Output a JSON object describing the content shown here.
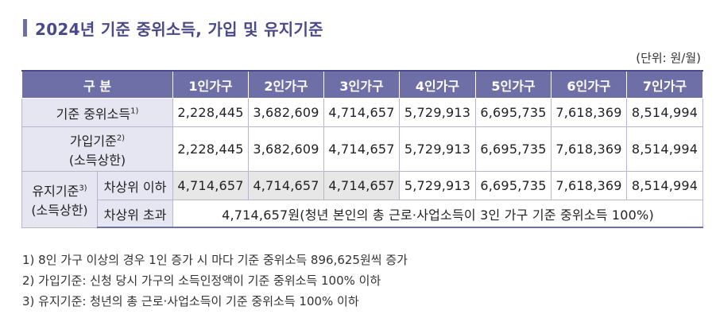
{
  "title": "2024년 기준 중위소득, 가입 및 유지기준",
  "unit": "(단위: 원/월)",
  "table": {
    "header": {
      "category": "구 분",
      "cols": [
        "1인가구",
        "2인가구",
        "3인가구",
        "4인가구",
        "5인가구",
        "6인가구",
        "7인가구"
      ]
    },
    "rows": {
      "median": {
        "label": "기준 중위소득",
        "sup": "1)",
        "values": [
          "2,228,445",
          "3,682,609",
          "4,714,657",
          "5,729,913",
          "6,695,735",
          "7,618,369",
          "8,514,994"
        ]
      },
      "join": {
        "label_line1": "가입기준",
        "sup": "2)",
        "label_line2": "(소득상한)",
        "values": [
          "2,228,445",
          "3,682,609",
          "4,714,657",
          "5,729,913",
          "6,695,735",
          "7,618,369",
          "8,514,994"
        ]
      },
      "maintain": {
        "label_line1": "유지기준",
        "sup": "3)",
        "label_line2": "(소득상한)",
        "sub_below": {
          "label": "차상위 이하",
          "values": [
            "4,714,657",
            "4,714,657",
            "4,714,657",
            "5,729,913",
            "6,695,735",
            "7,618,369",
            "8,514,994"
          ]
        },
        "sub_above": {
          "label": "차상위 초과",
          "text": "4,714,657원(청년 본인의 총 근로·사업소득이 3인 가구 기준 중위소득 100%)"
        }
      }
    }
  },
  "notes": [
    "1) 8인 가구 이상의 경우 1인 증가 시 마다 기준 중위소득 896,625원씩 증가",
    "2) 가입기준: 신청 당시 가구의 소득인정액이 기준 중위소득 100% 이하",
    "3) 유지기준: 청년의 총 근로·사업소득이 기준 중위소득 100% 이하"
  ],
  "colors": {
    "header": "#6f6fa8",
    "label_bg": "#e6e6f2",
    "highlight": "#e7e7e7",
    "title": "#4a4a8a"
  }
}
